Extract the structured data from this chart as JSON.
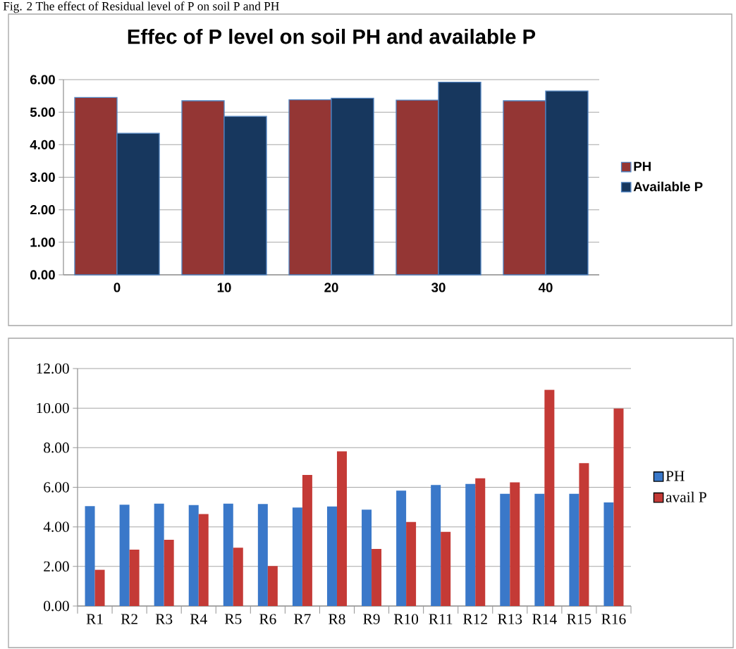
{
  "chart_data": [
    {
      "type": "bar",
      "title": "Effec of P level on soil PH and available P",
      "annotations": [
        "Fig. 2 The effect of Residual level of P on soil P and PH"
      ],
      "categories": [
        "0",
        "10",
        "20",
        "30",
        "40"
      ],
      "series": [
        {
          "name": "PH",
          "color": "#943634",
          "values": [
            5.45,
            5.35,
            5.38,
            5.37,
            5.35
          ]
        },
        {
          "name": "Available P",
          "color": "#17375e",
          "values": [
            4.35,
            4.87,
            5.43,
            5.92,
            5.65
          ]
        }
      ],
      "ylim": [
        0,
        6
      ],
      "yticks": [
        {
          "value": 0,
          "label": "0.00"
        },
        {
          "value": 1,
          "label": "1.00"
        },
        {
          "value": 2,
          "label": "2.00"
        },
        {
          "value": 3,
          "label": "3.00"
        },
        {
          "value": 4,
          "label": "4.00"
        },
        {
          "value": 5,
          "label": "5.00"
        },
        {
          "value": 6,
          "label": "6.00"
        }
      ],
      "grid": "y",
      "legend": "right"
    },
    {
      "type": "bar",
      "categories": [
        "R1",
        "R2",
        "R3",
        "R4",
        "R5",
        "R6",
        "R7",
        "R8",
        "R9",
        "R10",
        "R11",
        "R12",
        "R13",
        "R14",
        "R15",
        "R16"
      ],
      "series": [
        {
          "name": "PH",
          "color": "#3a78c9",
          "values": [
            5.05,
            5.12,
            5.17,
            5.1,
            5.17,
            5.15,
            4.98,
            5.03,
            4.87,
            5.83,
            6.12,
            6.17,
            5.67,
            5.67,
            5.67,
            5.23
          ]
        },
        {
          "name": "avail P",
          "color": "#c43a36",
          "values": [
            1.83,
            2.85,
            3.35,
            4.65,
            2.95,
            2.02,
            6.62,
            7.82,
            2.88,
            4.25,
            3.75,
            6.45,
            6.25,
            10.92,
            7.22,
            9.98
          ]
        }
      ],
      "ylim": [
        0,
        12
      ],
      "yticks": [
        {
          "value": 0,
          "label": "0.00"
        },
        {
          "value": 2,
          "label": "2.00"
        },
        {
          "value": 4,
          "label": "4.00"
        },
        {
          "value": 6,
          "label": "6.00"
        },
        {
          "value": 8,
          "label": "8.00"
        },
        {
          "value": 10,
          "label": "10.00"
        },
        {
          "value": 12,
          "label": "12.00"
        }
      ],
      "grid": "y",
      "legend": "right"
    }
  ]
}
